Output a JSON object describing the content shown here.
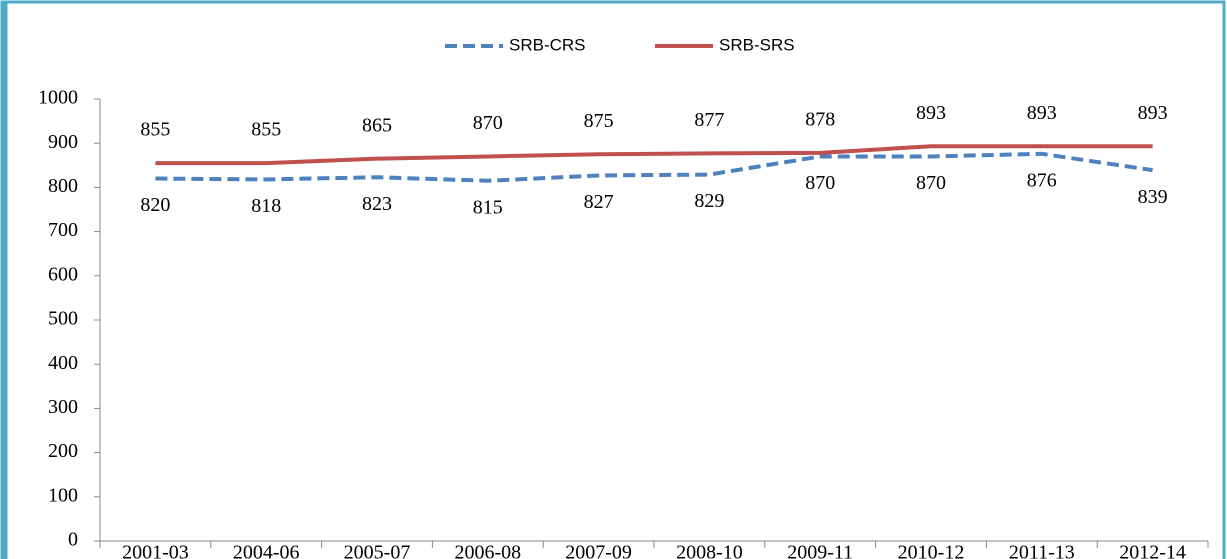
{
  "chart_data": {
    "type": "line",
    "categories": [
      "2001-03",
      "2004-06",
      "2005-07",
      "2006-08",
      "2007-09",
      "2008-10",
      "2009-11",
      "2010-12",
      "2011-13",
      "2012-14"
    ],
    "series": [
      {
        "name": "SRB-CRS",
        "color": "#4f81bd",
        "dash": true,
        "values": [
          820,
          818,
          823,
          815,
          827,
          829,
          870,
          870,
          876,
          839
        ]
      },
      {
        "name": "SRB-SRS",
        "color": "#c0504d",
        "dash": false,
        "values": [
          855,
          855,
          865,
          870,
          875,
          877,
          878,
          893,
          893,
          893
        ]
      }
    ],
    "ylim": [
      0,
      1000
    ],
    "yticks": [
      0,
      100,
      200,
      300,
      400,
      500,
      600,
      700,
      800,
      900,
      1000
    ],
    "grid": false,
    "legend": "top"
  }
}
